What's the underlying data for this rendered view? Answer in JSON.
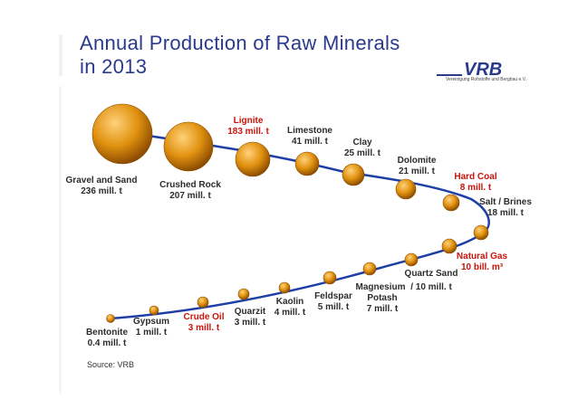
{
  "title": {
    "line1": "Annual Production of Raw Minerals",
    "line2": "in 2013"
  },
  "source": "Source:  VRB",
  "logo": {
    "mark": "VRB",
    "text": "Vereinigung Rohstoffe und Bergbau e.V."
  },
  "colors": {
    "title": "#2a3a8c",
    "path": "#1e3fa6",
    "ball": "#e0910f",
    "ball_dark": "#8a4a00",
    "label_dark": "#2c2c2c",
    "label_red": "#c8140a"
  },
  "chart_data": {
    "type": "bubble-path",
    "title": "Annual Production of Raw Minerals in 2013",
    "unit_note": "million tonnes (Natural Gas in billion m³)",
    "items": [
      {
        "name": "Gravel and Sand",
        "value_label": "236 mill. t",
        "value": 236,
        "unit": "mill. t",
        "highlight": false
      },
      {
        "name": "Crushed Rock",
        "value_label": "207 mill. t",
        "value": 207,
        "unit": "mill. t",
        "highlight": false
      },
      {
        "name": "Lignite",
        "value_label": "183 mill. t",
        "value": 183,
        "unit": "mill. t",
        "highlight": true
      },
      {
        "name": "Limestone",
        "value_label": "41 mill. t",
        "value": 41,
        "unit": "mill. t",
        "highlight": false
      },
      {
        "name": "Clay",
        "value_label": "25 mill. t",
        "value": 25,
        "unit": "mill. t",
        "highlight": false
      },
      {
        "name": "Dolomite",
        "value_label": "21 mill. t",
        "value": 21,
        "unit": "mill. t",
        "highlight": false
      },
      {
        "name": "Hard Coal",
        "value_label": "8 mill. t",
        "value": 8,
        "unit": "mill. t",
        "highlight": true
      },
      {
        "name": "Salt / Brines",
        "value_label": "18 mill. t",
        "value": 18,
        "unit": "mill. t",
        "highlight": false
      },
      {
        "name": "Natural Gas",
        "value_label": "10 bill. m³",
        "value": 10,
        "unit": "bill. m³",
        "highlight": true
      },
      {
        "name": "Quartz Sand",
        "value_label": "10 mill. t",
        "value": 10,
        "unit": "mill. t",
        "highlight": false,
        "value_prefix": "/ "
      },
      {
        "name": "Magnesium",
        "value_label": "",
        "value": null,
        "unit": "",
        "highlight": false
      },
      {
        "name": "Potash",
        "value_label": "7 mill. t",
        "value": 7,
        "unit": "mill. t",
        "highlight": false
      },
      {
        "name": "Feldspar",
        "value_label": "5  mill. t",
        "value": 5,
        "unit": "mill. t",
        "highlight": false
      },
      {
        "name": "Kaolin",
        "value_label": "4 mill. t",
        "value": 4,
        "unit": "mill. t",
        "highlight": false
      },
      {
        "name": "Quarzit",
        "value_label": "3 mill. t",
        "value": 3,
        "unit": "mill. t",
        "highlight": false
      },
      {
        "name": "Crude Oil",
        "value_label": "3 mill. t",
        "value": 3,
        "unit": "mill. t",
        "highlight": true
      },
      {
        "name": "Gypsum",
        "value_label": "1 mill. t",
        "value": 1,
        "unit": "mill. t",
        "highlight": false
      },
      {
        "name": "Bentonite",
        "value_label": "0.4 mill. t",
        "value": 0.4,
        "unit": "mill. t",
        "highlight": false
      }
    ]
  }
}
